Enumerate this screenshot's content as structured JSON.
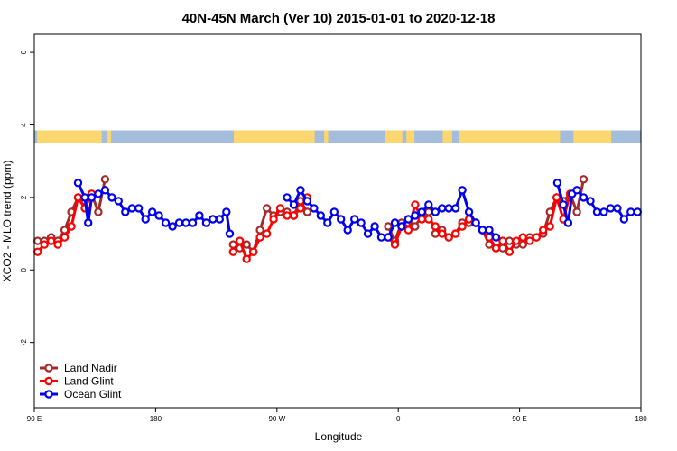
{
  "chart_data": {
    "type": "line",
    "title": "40N-45N March (Ver 10)   2015-01-01 to 2020-12-18",
    "xlabel": "Longitude",
    "ylabel": "XCO2 - MLO trend (ppm)",
    "xlim": [
      90,
      540
    ],
    "ylim": [
      -3.8,
      6.5
    ],
    "x_ticks": [
      {
        "value": 90,
        "label": "90 E"
      },
      {
        "value": 180,
        "label": "180"
      },
      {
        "value": 270,
        "label": "90 W"
      },
      {
        "value": 360,
        "label": "0"
      },
      {
        "value": 450,
        "label": "90 E"
      },
      {
        "value": 540,
        "label": "180"
      }
    ],
    "y_ticks": [
      {
        "value": -2,
        "label": "-2"
      },
      {
        "value": 0,
        "label": "0"
      },
      {
        "value": 2,
        "label": "2"
      },
      {
        "value": 4,
        "label": "4"
      },
      {
        "value": 6,
        "label": "6"
      }
    ],
    "land_mask": {
      "y_range": [
        3.5,
        3.85
      ],
      "ocean_color": "#a4bddd",
      "land_color": "#fcd66f",
      "land_spans": [
        [
          92,
          140
        ],
        [
          144,
          147
        ],
        [
          238,
          298
        ],
        [
          305,
          308
        ],
        [
          350,
          363
        ],
        [
          366,
          372
        ],
        [
          393,
          400
        ],
        [
          405,
          480
        ],
        [
          490,
          518
        ]
      ]
    },
    "legend": {
      "position": "bottom-left"
    },
    "series": [
      {
        "name": "Land Nadir",
        "color": "#a52a2a",
        "segments": [
          [
            [
              92.5,
              0.8
            ],
            [
              97.5,
              0.8
            ],
            [
              102.5,
              0.9
            ],
            [
              107.5,
              0.8
            ],
            [
              112.5,
              1.1
            ],
            [
              117.5,
              1.6
            ],
            [
              122.5,
              2.0
            ],
            [
              127.5,
              1.9
            ],
            [
              132.5,
              2.1
            ],
            [
              137.5,
              1.6
            ],
            [
              142.5,
              2.5
            ]
          ],
          [
            [
              237.5,
              0.7
            ],
            [
              242.5,
              0.6
            ],
            [
              247.5,
              0.7
            ],
            [
              252.5,
              0.5
            ],
            [
              257.5,
              1.1
            ],
            [
              262.5,
              1.7
            ],
            [
              267.5,
              1.5
            ],
            [
              272.5,
              1.6
            ],
            [
              277.5,
              1.6
            ],
            [
              282.5,
              1.5
            ],
            [
              287.5,
              1.9
            ],
            [
              292.5,
              1.6
            ]
          ],
          [
            [
              352.5,
              1.2
            ],
            [
              357.5,
              0.8
            ],
            [
              362.5,
              1.3
            ],
            [
              367.5,
              1.3
            ],
            [
              372.5,
              1.2
            ],
            [
              377.5,
              1.5
            ],
            [
              382.5,
              1.6
            ],
            [
              387.5,
              1.0
            ],
            [
              392.5,
              1.1
            ],
            [
              397.5,
              0.9
            ],
            [
              402.5,
              1.0
            ],
            [
              407.5,
              1.3
            ],
            [
              412.5,
              1.3
            ],
            [
              417.5,
              1.3
            ],
            [
              422.5,
              1.1
            ],
            [
              427.5,
              0.7
            ],
            [
              432.5,
              0.6
            ],
            [
              437.5,
              0.6
            ],
            [
              442.5,
              0.8
            ],
            [
              447.5,
              0.7
            ],
            [
              452.5,
              0.7
            ],
            [
              457.5,
              0.9
            ],
            [
              462.5,
              0.9
            ],
            [
              467.5,
              1.0
            ],
            [
              472.5,
              1.6
            ],
            [
              477.5,
              2.0
            ],
            [
              482.5,
              1.9
            ],
            [
              487.5,
              2.1
            ],
            [
              492.5,
              1.6
            ],
            [
              497.5,
              2.5
            ]
          ]
        ]
      },
      {
        "name": "Land Glint",
        "color": "#ff0000",
        "segments": [
          [
            [
              92.5,
              0.5
            ],
            [
              97.5,
              0.7
            ],
            [
              102.5,
              0.8
            ],
            [
              107.5,
              0.7
            ],
            [
              112.5,
              0.9
            ],
            [
              117.5,
              1.2
            ],
            [
              122.5,
              2.0
            ],
            [
              127.5,
              1.7
            ],
            [
              132.5,
              2.1
            ]
          ],
          [
            [
              237.5,
              0.5
            ],
            [
              242.5,
              0.8
            ],
            [
              247.5,
              0.3
            ],
            [
              252.5,
              0.5
            ],
            [
              257.5,
              0.9
            ],
            [
              262.5,
              1.0
            ],
            [
              267.5,
              1.4
            ],
            [
              272.5,
              1.7
            ],
            [
              277.5,
              1.5
            ],
            [
              282.5,
              1.5
            ],
            [
              287.5,
              1.7
            ],
            [
              292.5,
              2.0
            ]
          ],
          [
            [
              352.5,
              0.9
            ],
            [
              357.5,
              0.7
            ],
            [
              362.5,
              1.2
            ],
            [
              367.5,
              1.1
            ],
            [
              372.5,
              1.8
            ],
            [
              377.5,
              1.4
            ],
            [
              382.5,
              1.4
            ],
            [
              387.5,
              1.2
            ],
            [
              392.5,
              1.0
            ],
            [
              397.5,
              0.9
            ],
            [
              402.5,
              1.0
            ],
            [
              407.5,
              1.2
            ],
            [
              412.5,
              1.4
            ],
            [
              417.5,
              1.3
            ],
            [
              422.5,
              1.1
            ],
            [
              427.5,
              0.9
            ],
            [
              432.5,
              0.6
            ],
            [
              437.5,
              0.8
            ],
            [
              442.5,
              0.5
            ],
            [
              447.5,
              0.8
            ],
            [
              452.5,
              0.9
            ],
            [
              457.5,
              0.8
            ],
            [
              462.5,
              0.9
            ],
            [
              467.5,
              1.1
            ],
            [
              472.5,
              1.2
            ],
            [
              477.5,
              2.0
            ],
            [
              482.5,
              1.4
            ],
            [
              487.5,
              2.1
            ]
          ]
        ]
      },
      {
        "name": "Ocean Glint",
        "color": "#0000ee",
        "segments": [
          [
            [
              122.5,
              2.4
            ],
            [
              127.5,
              2.0
            ],
            [
              130,
              1.3
            ],
            [
              132.5,
              2.0
            ],
            [
              137.5,
              2.1
            ],
            [
              142.5,
              2.2
            ],
            [
              147.5,
              2.0
            ],
            [
              152.5,
              1.9
            ],
            [
              157.5,
              1.6
            ],
            [
              162.5,
              1.7
            ],
            [
              167.5,
              1.7
            ],
            [
              172.5,
              1.4
            ],
            [
              177.5,
              1.6
            ],
            [
              182.5,
              1.5
            ],
            [
              187.5,
              1.3
            ],
            [
              192.5,
              1.2
            ],
            [
              197.5,
              1.3
            ],
            [
              202.5,
              1.3
            ],
            [
              207.5,
              1.3
            ],
            [
              212.5,
              1.5
            ],
            [
              217.5,
              1.3
            ],
            [
              222.5,
              1.4
            ],
            [
              227.5,
              1.4
            ],
            [
              232.5,
              1.6
            ],
            [
              235,
              1.0
            ]
          ],
          [
            [
              277.5,
              2.0
            ],
            [
              282.5,
              1.8
            ],
            [
              287.5,
              2.2
            ],
            [
              292.5,
              1.9
            ],
            [
              297.5,
              1.7
            ],
            [
              302.5,
              1.5
            ],
            [
              307.5,
              1.3
            ],
            [
              312.5,
              1.6
            ],
            [
              317.5,
              1.4
            ],
            [
              322.5,
              1.1
            ],
            [
              327.5,
              1.4
            ],
            [
              332.5,
              1.3
            ],
            [
              337.5,
              1.0
            ],
            [
              342.5,
              1.2
            ],
            [
              347.5,
              0.9
            ],
            [
              352.5,
              0.9
            ],
            [
              357.5,
              1.3
            ],
            [
              362.5,
              1.2
            ],
            [
              367.5,
              1.4
            ],
            [
              372.5,
              1.5
            ],
            [
              377.5,
              1.6
            ],
            [
              382.5,
              1.8
            ],
            [
              387.5,
              1.6
            ],
            [
              392.5,
              1.7
            ],
            [
              397.5,
              1.7
            ],
            [
              402.5,
              1.7
            ],
            [
              407.5,
              2.2
            ],
            [
              412.5,
              1.6
            ],
            [
              417.5,
              1.3
            ],
            [
              422.5,
              1.1
            ],
            [
              427.5,
              1.1
            ],
            [
              432.5,
              0.9
            ]
          ],
          [
            [
              478,
              2.4
            ],
            [
              482.5,
              1.8
            ],
            [
              486,
              1.3
            ],
            [
              489,
              2.1
            ],
            [
              492.5,
              2.2
            ],
            [
              497.5,
              2.0
            ],
            [
              502.5,
              1.9
            ],
            [
              507.5,
              1.6
            ],
            [
              512.5,
              1.6
            ],
            [
              517.5,
              1.7
            ],
            [
              522.5,
              1.7
            ],
            [
              527.5,
              1.4
            ],
            [
              532.5,
              1.6
            ],
            [
              537.5,
              1.6
            ]
          ]
        ]
      }
    ]
  }
}
